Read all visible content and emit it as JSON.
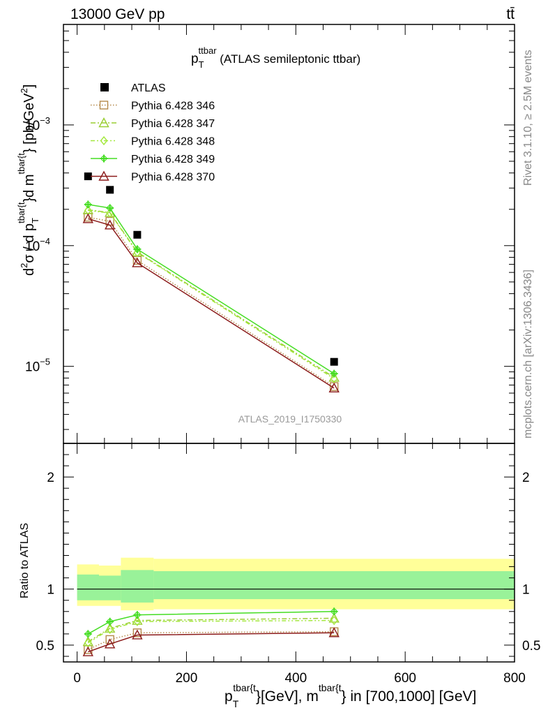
{
  "header": {
    "left": "13000 GeV pp",
    "right": "tt̄"
  },
  "side_labels": {
    "rivet": "Rivet 3.1.10, ≥ 2.5M events",
    "mcplots": "mcplots.cern.ch [arXiv:1306.3436]"
  },
  "chart_data": [
    {
      "panel": "main",
      "type": "line",
      "title_main": "p",
      "title_sub": "T",
      "title_sup": "ttbar",
      "title_rest": " (ATLAS semileptonic ttbar)",
      "ylabel": "d²σ / d p_T^{tbar{t}}d m^{tbar{t}} [pb/GeV²]",
      "ylabel_parts": {
        "d1": "d",
        "sq1": "2",
        "sigma": "σ / d p",
        "sub": "T",
        "sup1": "tbar{t",
        "mid": "}d m",
        "sup2": "tbar{t",
        "end": "} [pb/GeV",
        "sq2": "2",
        "close": "]"
      },
      "yscale": "log",
      "ylim": [
        2.3e-06,
        0.0068
      ],
      "xlim": [
        -25,
        800
      ],
      "yticks_labels": [
        {
          "value": 0.001,
          "base": "10",
          "exp": "−3"
        },
        {
          "value": 0.0001,
          "base": "10",
          "exp": "−4"
        },
        {
          "value": 1e-05,
          "base": "10",
          "exp": "−5"
        }
      ],
      "watermark": "ATLAS_2019_I1750330",
      "legend_position": "top-left",
      "data": {
        "name": "ATLAS",
        "x": [
          20,
          60,
          110,
          470
        ],
        "y": [
          0.000375,
          0.00029,
          0.000123,
          1.09e-05
        ]
      },
      "series": [
        {
          "name": "Pythia 6.428 346",
          "color": "#b5894a",
          "style": "dotted",
          "marker": "square",
          "x": [
            20,
            60,
            110,
            470
          ],
          "y": [
            0.000172,
            0.000159,
            7.55e-05,
            6.8e-06
          ]
        },
        {
          "name": "Pythia 6.428 347",
          "color": "#9acd32",
          "style": "dashdot",
          "marker": "triangle",
          "x": [
            20,
            60,
            110,
            470
          ],
          "y": [
            0.000198,
            0.000188,
            8.85e-05,
            8.1e-06
          ]
        },
        {
          "name": "Pythia 6.428 348",
          "color": "#a4e83e",
          "style": "dashdotdot",
          "marker": "diamond",
          "x": [
            20,
            60,
            110,
            470
          ],
          "y": [
            0.000196,
            0.000186,
            8.76e-05,
            7.9e-06
          ]
        },
        {
          "name": "Pythia 6.428 349",
          "color": "#44dd22",
          "style": "solid",
          "marker": "cross",
          "x": [
            20,
            60,
            110,
            470
          ],
          "y": [
            0.000219,
            0.000205,
            9.35e-05,
            8.7e-06
          ]
        },
        {
          "name": "Pythia 6.428 370",
          "color": "#8b1a1a",
          "style": "solid",
          "marker": "triangle-open",
          "x": [
            20,
            60,
            110,
            470
          ],
          "y": [
            0.000167,
            0.000148,
            7.2e-05,
            6.6e-06
          ]
        }
      ]
    },
    {
      "panel": "ratio",
      "type": "line",
      "ylabel": "Ratio to ATLAS",
      "yscale": "linear",
      "ylim": [
        0.35,
        2.3
      ],
      "xlim": [
        -25,
        800
      ],
      "yticks": [
        0.5,
        1,
        2
      ],
      "xticks": [
        0,
        200,
        400,
        600,
        800
      ],
      "xlabel_parts": {
        "p": "p",
        "sub": "T",
        "sup1": "tbar{t",
        "mid": "}[GeV], m",
        "sup2": "tbar{t",
        "end": "} in [700,1000] [GeV]"
      },
      "bands": {
        "edges": [
          0,
          40,
          80,
          140,
          800
        ],
        "yellow": [
          [
            0.85,
            1.22
          ],
          [
            0.85,
            1.21
          ],
          [
            0.81,
            1.28
          ],
          [
            0.82,
            1.27
          ]
        ],
        "green": [
          [
            0.9,
            1.13
          ],
          [
            0.9,
            1.12
          ],
          [
            0.88,
            1.17
          ],
          [
            0.91,
            1.16
          ]
        ]
      },
      "series": [
        {
          "name": "Pythia 6.428 346",
          "x": [
            20,
            60,
            110,
            470
          ],
          "y": [
            0.46,
            0.55,
            0.61,
            0.62
          ]
        },
        {
          "name": "Pythia 6.428 347",
          "x": [
            20,
            60,
            110,
            470
          ],
          "y": [
            0.53,
            0.65,
            0.72,
            0.74
          ]
        },
        {
          "name": "Pythia 6.428 348",
          "x": [
            20,
            60,
            110,
            470
          ],
          "y": [
            0.52,
            0.64,
            0.71,
            0.72
          ]
        },
        {
          "name": "Pythia 6.428 349",
          "x": [
            20,
            60,
            110,
            470
          ],
          "y": [
            0.6,
            0.71,
            0.77,
            0.8
          ]
        },
        {
          "name": "Pythia 6.428 370",
          "x": [
            20,
            60,
            110,
            470
          ],
          "y": [
            0.44,
            0.51,
            0.59,
            0.61
          ]
        }
      ]
    }
  ]
}
